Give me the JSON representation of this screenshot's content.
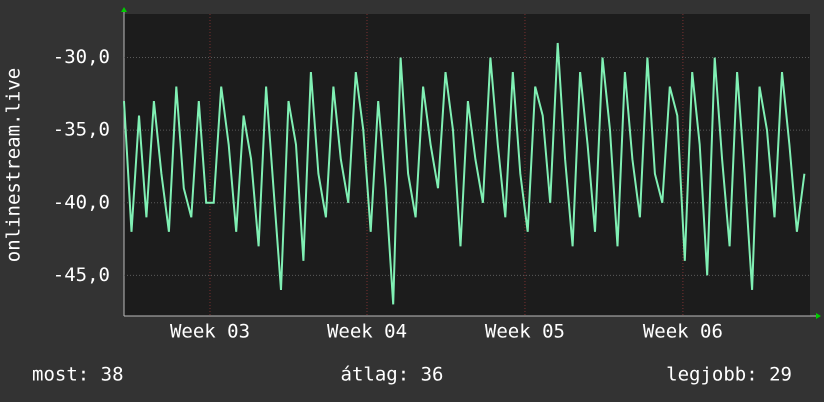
{
  "chart_data": {
    "type": "line",
    "y_label": "onlinestream.live",
    "color": "#80f0b4",
    "x": [
      0,
      8,
      16,
      24,
      32,
      40,
      48,
      56,
      64,
      72,
      80,
      88,
      96,
      104,
      112,
      120,
      128,
      136,
      144,
      152,
      160,
      168,
      176,
      184,
      192,
      200,
      208,
      216,
      224,
      232,
      240,
      248,
      256,
      264,
      272,
      280,
      288,
      296,
      304,
      312,
      320,
      328,
      336,
      344,
      352,
      360,
      368,
      376,
      384,
      392,
      400,
      408,
      416,
      424,
      432,
      440,
      448,
      456,
      464,
      472,
      480,
      488,
      496,
      504,
      512,
      520,
      528,
      536,
      544,
      552,
      560,
      568,
      576,
      584,
      592,
      600,
      608,
      616,
      624,
      632,
      640,
      648,
      656,
      664,
      672,
      680,
      688,
      696,
      704,
      712,
      720,
      728
    ],
    "values": [
      -33,
      -42,
      -34,
      -41,
      -33,
      -38,
      -42,
      -32,
      -39,
      -41,
      -33,
      -40,
      -40,
      -32,
      -36,
      -42,
      -34,
      -37,
      -43,
      -32,
      -39,
      -46,
      -33,
      -36,
      -44,
      -31,
      -38,
      -41,
      -32,
      -37,
      -40,
      -31,
      -35,
      -42,
      -33,
      -39,
      -47,
      -30,
      -38,
      -41,
      -32,
      -36,
      -39,
      -31,
      -35,
      -43,
      -33,
      -37,
      -40,
      -30,
      -36,
      -41,
      -31,
      -38,
      -42,
      -32,
      -34,
      -40,
      -29,
      -37,
      -43,
      -31,
      -36,
      -42,
      -30,
      -35,
      -43,
      -31,
      -37,
      -41,
      -30,
      -38,
      -40,
      -32,
      -34,
      -44,
      -31,
      -36,
      -45,
      -30,
      -37,
      -43,
      -31,
      -38,
      -46,
      -32,
      -35,
      -41,
      -31,
      -36,
      -42,
      -38
    ],
    "xlim": [
      0,
      734
    ],
    "ylim": [
      -47.8,
      -27.0
    ],
    "xticks": [
      {
        "value": 92,
        "label": "Week 03"
      },
      {
        "value": 260,
        "label": "Week 04"
      },
      {
        "value": 429,
        "label": "Week 05"
      },
      {
        "value": 598,
        "label": "Week 06"
      }
    ],
    "yticks": [
      {
        "value": -45,
        "label": "-45,0"
      },
      {
        "value": -40,
        "label": "-40,0"
      },
      {
        "value": -35,
        "label": "-35,0"
      },
      {
        "value": -30,
        "label": "-30,0"
      }
    ],
    "grid": true,
    "stats": [
      "most: 38",
      "átlag: 36",
      "legjobb: 29"
    ]
  }
}
